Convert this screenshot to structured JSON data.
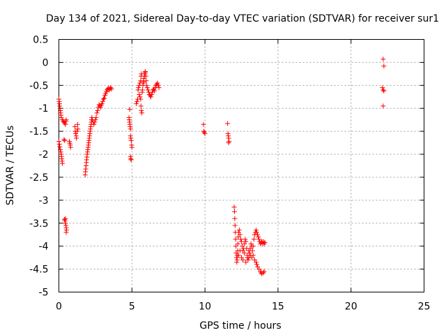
{
  "chart_data": {
    "type": "scatter",
    "title": "Day 134 of 2021, Sidereal Day-to-day VTEC variation (SDTVAR) for receiver sur1",
    "xlabel": "GPS time / hours",
    "ylabel": "SDTVAR / TECUs",
    "xlim": [
      0,
      25
    ],
    "ylim": [
      -5,
      0.5
    ],
    "xticks": [
      0,
      5,
      10,
      15,
      20,
      25
    ],
    "xtick_labels": [
      "0",
      "5",
      "10",
      "15",
      "20",
      "25"
    ],
    "yticks": [
      0.5,
      0,
      -0.5,
      -1,
      -1.5,
      -2,
      -2.5,
      -3,
      -3.5,
      -4,
      -4.5,
      -5
    ],
    "ytick_labels": [
      "0.5",
      "0",
      "-0.5",
      "-1",
      "-1.5",
      "-2",
      "-2.5",
      "-3",
      "-3.5",
      "-4",
      "-4.5",
      "-5"
    ],
    "grid": true,
    "marker": "+",
    "color": "#ff0000",
    "series": [
      {
        "name": "sur1",
        "points": [
          [
            0.0,
            -0.8
          ],
          [
            0.02,
            -0.85
          ],
          [
            0.04,
            -0.9
          ],
          [
            0.06,
            -0.95
          ],
          [
            0.08,
            -1.0
          ],
          [
            0.1,
            -1.05
          ],
          [
            0.12,
            -1.1
          ],
          [
            0.14,
            -1.15
          ],
          [
            0.16,
            -1.2
          ],
          [
            0.0,
            -1.72
          ],
          [
            0.03,
            -1.78
          ],
          [
            0.06,
            -1.84
          ],
          [
            0.1,
            -1.9
          ],
          [
            0.13,
            -1.95
          ],
          [
            0.16,
            -2.0
          ],
          [
            0.18,
            -2.05
          ],
          [
            0.2,
            -2.1
          ],
          [
            0.22,
            -2.15
          ],
          [
            0.24,
            -2.2
          ],
          [
            0.25,
            -1.25
          ],
          [
            0.3,
            -1.28
          ],
          [
            0.35,
            -1.3
          ],
          [
            0.4,
            -1.32
          ],
          [
            0.45,
            -1.35
          ],
          [
            0.48,
            -1.28
          ],
          [
            0.5,
            -1.25
          ],
          [
            0.35,
            -1.68
          ],
          [
            0.4,
            -1.7
          ],
          [
            0.38,
            -3.42
          ],
          [
            0.42,
            -3.45
          ],
          [
            0.45,
            -3.5
          ],
          [
            0.48,
            -3.55
          ],
          [
            0.5,
            -3.6
          ],
          [
            0.52,
            -3.65
          ],
          [
            0.5,
            -3.7
          ],
          [
            0.45,
            -3.4
          ],
          [
            0.72,
            -1.72
          ],
          [
            0.75,
            -1.76
          ],
          [
            0.78,
            -1.8
          ],
          [
            0.8,
            -1.85
          ],
          [
            1.1,
            -1.4
          ],
          [
            1.12,
            -1.5
          ],
          [
            1.15,
            -1.55
          ],
          [
            1.18,
            -1.6
          ],
          [
            1.2,
            -1.65
          ],
          [
            1.25,
            -1.5
          ],
          [
            1.28,
            -1.35
          ],
          [
            1.3,
            -1.45
          ],
          [
            1.8,
            -2.45
          ],
          [
            1.82,
            -2.38
          ],
          [
            1.84,
            -2.32
          ],
          [
            1.86,
            -2.25
          ],
          [
            1.88,
            -2.18
          ],
          [
            1.9,
            -2.12
          ],
          [
            1.92,
            -2.06
          ],
          [
            1.94,
            -2.0
          ],
          [
            1.96,
            -1.95
          ],
          [
            1.98,
            -1.9
          ],
          [
            2.0,
            -1.85
          ],
          [
            2.02,
            -1.8
          ],
          [
            2.04,
            -1.75
          ],
          [
            2.06,
            -1.7
          ],
          [
            2.08,
            -1.65
          ],
          [
            2.1,
            -1.6
          ],
          [
            2.12,
            -1.55
          ],
          [
            2.14,
            -1.5
          ],
          [
            2.16,
            -1.45
          ],
          [
            2.18,
            -1.4
          ],
          [
            2.2,
            -1.35
          ],
          [
            2.22,
            -1.3
          ],
          [
            2.24,
            -1.25
          ],
          [
            2.26,
            -1.2
          ],
          [
            2.3,
            -1.25
          ],
          [
            2.35,
            -1.3
          ],
          [
            2.4,
            -1.35
          ],
          [
            2.45,
            -1.3
          ],
          [
            2.5,
            -1.25
          ],
          [
            2.55,
            -1.2
          ],
          [
            2.6,
            -1.1
          ],
          [
            2.65,
            -1.05
          ],
          [
            2.7,
            -0.98
          ],
          [
            2.75,
            -0.92
          ],
          [
            2.8,
            -0.95
          ],
          [
            2.85,
            -0.98
          ],
          [
            2.9,
            -0.93
          ],
          [
            2.95,
            -0.9
          ],
          [
            3.0,
            -0.85
          ],
          [
            3.05,
            -0.8
          ],
          [
            3.1,
            -0.78
          ],
          [
            3.15,
            -0.72
          ],
          [
            3.2,
            -0.68
          ],
          [
            3.25,
            -0.64
          ],
          [
            3.3,
            -0.6
          ],
          [
            3.35,
            -0.58
          ],
          [
            3.4,
            -0.56
          ],
          [
            3.45,
            -0.6
          ],
          [
            3.5,
            -0.57
          ],
          [
            3.55,
            -0.55
          ],
          [
            3.6,
            -0.58
          ],
          [
            4.8,
            -1.2
          ],
          [
            4.82,
            -1.25
          ],
          [
            4.84,
            -1.3
          ],
          [
            4.86,
            -1.35
          ],
          [
            4.88,
            -1.4
          ],
          [
            4.9,
            -1.45
          ],
          [
            4.85,
            -1.02
          ],
          [
            4.9,
            -1.6
          ],
          [
            4.92,
            -1.65
          ],
          [
            4.95,
            -1.7
          ],
          [
            4.98,
            -1.8
          ],
          [
            5.0,
            -1.85
          ],
          [
            4.9,
            -2.05
          ],
          [
            4.92,
            -2.1
          ],
          [
            4.95,
            -2.12
          ],
          [
            5.3,
            -0.9
          ],
          [
            5.35,
            -0.85
          ],
          [
            5.4,
            -0.8
          ],
          [
            5.42,
            -0.6
          ],
          [
            5.45,
            -0.55
          ],
          [
            5.5,
            -0.5
          ],
          [
            5.55,
            -0.45
          ],
          [
            5.6,
            -0.4
          ],
          [
            5.62,
            -0.3
          ],
          [
            5.65,
            -0.25
          ],
          [
            5.5,
            -0.7
          ],
          [
            5.55,
            -0.75
          ],
          [
            5.6,
            -0.8
          ],
          [
            5.62,
            -0.95
          ],
          [
            5.65,
            -1.05
          ],
          [
            5.68,
            -1.1
          ],
          [
            5.7,
            -0.65
          ],
          [
            5.72,
            -0.6
          ],
          [
            5.75,
            -0.5
          ],
          [
            5.78,
            -0.45
          ],
          [
            5.8,
            -0.42
          ],
          [
            5.82,
            -0.35
          ],
          [
            5.85,
            -0.3
          ],
          [
            5.88,
            -0.25
          ],
          [
            5.9,
            -0.22
          ],
          [
            5.92,
            -0.2
          ],
          [
            5.95,
            -0.3
          ],
          [
            5.98,
            -0.4
          ],
          [
            6.0,
            -0.5
          ],
          [
            6.05,
            -0.55
          ],
          [
            6.1,
            -0.6
          ],
          [
            6.15,
            -0.65
          ],
          [
            6.2,
            -0.7
          ],
          [
            6.25,
            -0.72
          ],
          [
            6.3,
            -0.75
          ],
          [
            6.35,
            -0.7
          ],
          [
            6.4,
            -0.65
          ],
          [
            6.45,
            -0.6
          ],
          [
            6.5,
            -0.58
          ],
          [
            6.55,
            -0.62
          ],
          [
            6.6,
            -0.55
          ],
          [
            6.65,
            -0.5
          ],
          [
            6.7,
            -0.48
          ],
          [
            6.75,
            -0.45
          ],
          [
            6.8,
            -0.5
          ],
          [
            6.85,
            -0.55
          ],
          [
            9.9,
            -1.35
          ],
          [
            9.92,
            -1.5
          ],
          [
            9.95,
            -1.52
          ],
          [
            10.0,
            -1.55
          ],
          [
            11.55,
            -1.33
          ],
          [
            11.58,
            -1.55
          ],
          [
            11.6,
            -1.6
          ],
          [
            11.62,
            -1.65
          ],
          [
            11.65,
            -1.72
          ],
          [
            11.62,
            -1.75
          ],
          [
            12.0,
            -3.15
          ],
          [
            12.02,
            -3.25
          ],
          [
            12.04,
            -3.4
          ],
          [
            12.06,
            -3.55
          ],
          [
            12.08,
            -3.7
          ],
          [
            12.1,
            -3.85
          ],
          [
            12.12,
            -4.0
          ],
          [
            12.14,
            -4.15
          ],
          [
            12.16,
            -4.25
          ],
          [
            12.18,
            -4.35
          ],
          [
            12.2,
            -4.3
          ],
          [
            12.22,
            -4.2
          ],
          [
            12.24,
            -4.1
          ],
          [
            12.26,
            -3.95
          ],
          [
            12.28,
            -3.8
          ],
          [
            12.3,
            -3.7
          ],
          [
            12.35,
            -3.65
          ],
          [
            12.4,
            -3.75
          ],
          [
            12.45,
            -3.85
          ],
          [
            12.5,
            -3.9
          ],
          [
            12.55,
            -4.0
          ],
          [
            12.6,
            -4.1
          ],
          [
            12.65,
            -4.05
          ],
          [
            12.7,
            -3.95
          ],
          [
            12.75,
            -3.85
          ],
          [
            12.8,
            -3.9
          ],
          [
            12.85,
            -4.05
          ],
          [
            12.9,
            -4.2
          ],
          [
            12.95,
            -4.3
          ],
          [
            13.0,
            -4.25
          ],
          [
            13.05,
            -4.15
          ],
          [
            13.1,
            -4.05
          ],
          [
            13.15,
            -3.95
          ],
          [
            13.2,
            -4.0
          ],
          [
            13.25,
            -4.1
          ],
          [
            13.3,
            -4.0
          ],
          [
            13.35,
            -3.85
          ],
          [
            13.4,
            -3.75
          ],
          [
            13.45,
            -3.7
          ],
          [
            13.5,
            -3.65
          ],
          [
            13.55,
            -3.7
          ],
          [
            13.6,
            -3.75
          ],
          [
            13.65,
            -3.8
          ],
          [
            13.7,
            -3.85
          ],
          [
            13.75,
            -3.9
          ],
          [
            13.8,
            -3.95
          ],
          [
            13.85,
            -3.92
          ],
          [
            13.9,
            -3.9
          ],
          [
            13.95,
            -3.95
          ],
          [
            14.0,
            -3.9
          ],
          [
            14.05,
            -3.95
          ],
          [
            14.1,
            -3.92
          ],
          [
            12.3,
            -4.2
          ],
          [
            12.4,
            -4.1
          ],
          [
            12.5,
            -4.25
          ],
          [
            12.6,
            -4.3
          ],
          [
            12.7,
            -4.15
          ],
          [
            12.8,
            -4.35
          ],
          [
            12.9,
            -4.25
          ],
          [
            13.0,
            -4.1
          ],
          [
            13.1,
            -4.2
          ],
          [
            13.2,
            -4.25
          ],
          [
            13.3,
            -4.2
          ],
          [
            13.4,
            -4.3
          ],
          [
            13.5,
            -4.35
          ],
          [
            13.55,
            -4.4
          ],
          [
            13.6,
            -4.45
          ],
          [
            13.7,
            -4.5
          ],
          [
            13.8,
            -4.55
          ],
          [
            13.85,
            -4.58
          ],
          [
            13.9,
            -4.6
          ],
          [
            14.0,
            -4.58
          ],
          [
            14.05,
            -4.55
          ],
          [
            22.2,
            0.07
          ],
          [
            22.25,
            -0.08
          ],
          [
            22.15,
            -0.55
          ],
          [
            22.2,
            -0.6
          ],
          [
            22.25,
            -0.62
          ],
          [
            22.2,
            -0.95
          ]
        ]
      }
    ]
  }
}
